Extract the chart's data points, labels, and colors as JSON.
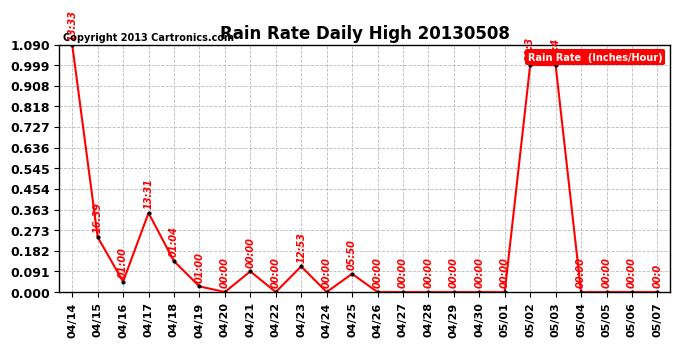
{
  "title": "Rain Rate Daily High 20130508",
  "copyright": "Copyright 2013 Cartronics.com",
  "legend_label": "Rain Rate  (Inches/Hour)",
  "x_labels": [
    "04/14",
    "04/15",
    "04/16",
    "04/17",
    "04/18",
    "04/19",
    "04/20",
    "04/21",
    "04/22",
    "04/23",
    "04/24",
    "04/25",
    "04/26",
    "04/27",
    "04/28",
    "04/29",
    "04/30",
    "05/01",
    "05/02",
    "05/03",
    "05/04",
    "05/05",
    "05/06",
    "05/07"
  ],
  "y_values": [
    1.09,
    0.242,
    0.046,
    0.348,
    0.136,
    0.025,
    0.0,
    0.091,
    0.0,
    0.113,
    0.0,
    0.08,
    0.0,
    0.0,
    0.0,
    0.0,
    0.0,
    0.0,
    1.0,
    0.999,
    0.0,
    0.0,
    0.0,
    0.0
  ],
  "point_labels": [
    "13:33",
    "16:39",
    "01:00",
    "13:31",
    "01:04",
    "01:00",
    "00:00",
    "00:00",
    "00:00",
    "12:53",
    "00:00",
    "05:50",
    "00:00",
    "00:00",
    "00:00",
    "00:00",
    "00:00",
    "00:00",
    "21:3",
    "07:4",
    "00:00",
    "00:00",
    "00:00",
    "00:0"
  ],
  "ylim": [
    0.0,
    1.09
  ],
  "yticks": [
    0.0,
    0.091,
    0.182,
    0.273,
    0.363,
    0.454,
    0.545,
    0.636,
    0.727,
    0.818,
    0.908,
    0.999,
    1.09
  ],
  "line_color": "#FF0000",
  "marker_color": "#000000",
  "label_color": "#FF0000",
  "bg_color": "#FFFFFF",
  "grid_color": "#BBBBBB",
  "title_fontsize": 12,
  "copyright_fontsize": 7,
  "tick_label_fontsize": 8,
  "ytick_label_fontsize": 9,
  "point_label_fontsize": 7
}
